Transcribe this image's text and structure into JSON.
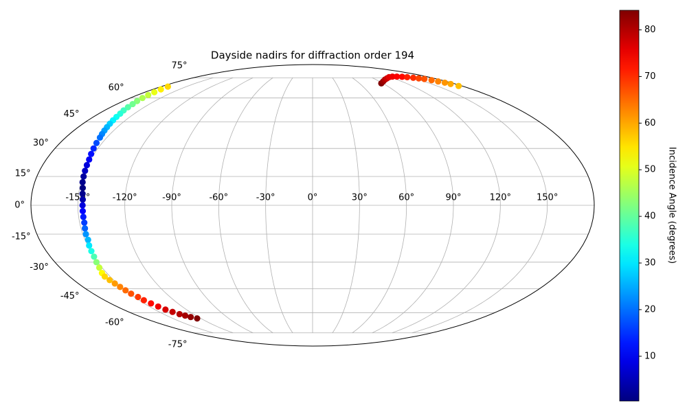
{
  "chart_data": {
    "type": "scatter",
    "projection": "mollweide",
    "title": "Dayside nadirs for diffraction order 194",
    "xlim": [
      -180,
      180
    ],
    "ylim": [
      -90,
      90
    ],
    "xticks": [
      {
        "value": -150,
        "label": "-150°"
      },
      {
        "value": -120,
        "label": "-120°"
      },
      {
        "value": -90,
        "label": "-90°"
      },
      {
        "value": -60,
        "label": "-60°"
      },
      {
        "value": -30,
        "label": "-30°"
      },
      {
        "value": 0,
        "label": "0°"
      },
      {
        "value": 30,
        "label": "30°"
      },
      {
        "value": 60,
        "label": "60°"
      },
      {
        "value": 90,
        "label": "90°"
      },
      {
        "value": 120,
        "label": "120°"
      },
      {
        "value": 150,
        "label": "150°"
      }
    ],
    "yticks": [
      {
        "value": -75,
        "label": "-75°"
      },
      {
        "value": -60,
        "label": "-60°"
      },
      {
        "value": -45,
        "label": "-45°"
      },
      {
        "value": -30,
        "label": "-30°"
      },
      {
        "value": -15,
        "label": "-15°"
      },
      {
        "value": 0,
        "label": "0°"
      },
      {
        "value": 15,
        "label": "15°"
      },
      {
        "value": 30,
        "label": "30°"
      },
      {
        "value": 45,
        "label": "45°"
      },
      {
        "value": 60,
        "label": "60°"
      },
      {
        "value": 75,
        "label": "75°"
      }
    ],
    "grid": true,
    "colormap": "jet",
    "series": [
      {
        "x": [
          -172,
          -171,
          -170,
          -169,
          -168,
          -167,
          -165.5,
          -164.5,
          -163.5,
          -162,
          -161,
          -160,
          -159,
          -158,
          -157,
          -156,
          -155,
          -154,
          -153,
          -152,
          -151,
          -150.5,
          -150,
          -149.5,
          -149,
          -148,
          -147.5,
          -147,
          -147,
          -147,
          -147,
          -147,
          -147.5,
          -148,
          -148,
          -149,
          -149.5,
          -150,
          -151,
          -152,
          -153.5,
          -154,
          -153,
          -152,
          -151,
          -150,
          -149,
          -147,
          -146,
          -144,
          -142,
          -140,
          -137,
          -134,
          -131,
          -128,
          -124,
          88,
          95,
          103,
          110,
          118,
          126,
          133,
          140,
          146,
          152,
          157,
          162,
          166,
          169,
          172,
          174,
          176
        ],
        "values": [
          68,
          66,
          64,
          62,
          60,
          58,
          56,
          54,
          52,
          50,
          48,
          46,
          44,
          42,
          40,
          38,
          36,
          33,
          30,
          27,
          24,
          21,
          18,
          15,
          12,
          9,
          6,
          3,
          0,
          -3,
          -6,
          -9,
          -12,
          -15,
          -18,
          -21,
          -24,
          -27,
          -30,
          -33,
          -36,
          -38,
          -40,
          -42,
          -44,
          -46,
          -48,
          -50,
          -52,
          -54,
          -56,
          -58,
          -59.5,
          -61,
          -62,
          -63,
          -64,
          70.5,
          72,
          73.5,
          74.5,
          75.5,
          76,
          76,
          75.8,
          75.5,
          75,
          74.5,
          74,
          73,
          72,
          71,
          70,
          68.5
        ],
        "incidence": [
          56,
          54,
          51,
          48,
          46,
          43,
          41,
          39,
          37,
          35,
          33,
          31,
          28,
          26,
          24,
          22,
          20,
          17,
          14,
          12,
          10,
          8,
          6,
          3,
          1.5,
          0.4,
          1.5,
          4,
          8,
          11,
          13,
          16,
          19,
          23,
          26,
          30,
          34,
          38,
          43,
          48,
          53,
          56,
          58,
          61,
          63,
          65,
          67,
          69,
          71,
          73,
          75,
          77,
          78.5,
          80,
          81,
          82.5,
          84.2,
          84,
          82,
          80,
          78,
          76,
          75,
          74,
          73,
          71,
          70,
          68,
          67,
          65,
          63,
          61.5,
          60,
          58
        ]
      }
    ],
    "colorbar": {
      "label": "Incidence Angle (degrees)",
      "lim": [
        0.4,
        84.2
      ],
      "ticks": [
        10,
        20,
        30,
        40,
        50,
        60,
        70,
        80
      ]
    }
  }
}
